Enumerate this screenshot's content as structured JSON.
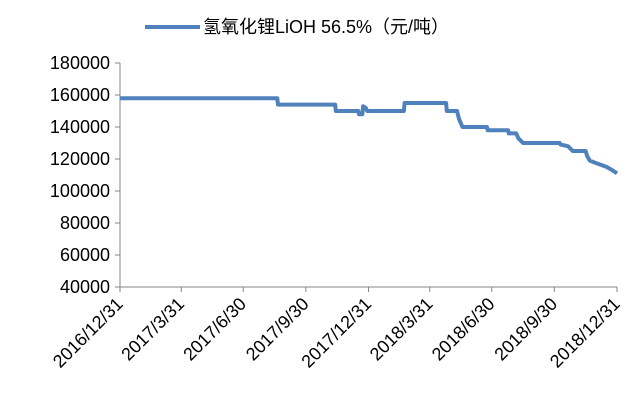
{
  "chart_data": {
    "type": "line",
    "series": [
      {
        "name": "氢氧化锂LiOH 56.5%（元/吨）",
        "color": "#4f81bd",
        "x": [
          "2016/12/31",
          "2017/8/19",
          "2017/8/20",
          "2017/11/12",
          "2017/11/13",
          "2017/12/16",
          "2017/12/17",
          "2017/12/22",
          "2017/12/23",
          "2017/12/27",
          "2017/12/29",
          "2018/2/21",
          "2018/2/22",
          "2018/4/24",
          "2018/4/25",
          "2018/5/10",
          "2018/5/13",
          "2018/5/18",
          "2018/6/23",
          "2018/6/24",
          "2018/7/24",
          "2018/7/25",
          "2018/8/5",
          "2018/8/8",
          "2018/8/15",
          "2018/10/8",
          "2018/10/9",
          "2018/10/20",
          "2018/10/27",
          "2018/11/15",
          "2018/11/17",
          "2018/11/21",
          "2018/12/3",
          "2018/12/16",
          "2018/12/24",
          "2018/12/31"
        ],
        "values": [
          158000,
          158000,
          154000,
          154000,
          150000,
          150000,
          148000,
          148000,
          153000,
          152000,
          150000,
          150000,
          155000,
          155000,
          150000,
          150000,
          145000,
          140000,
          140000,
          138000,
          138000,
          136000,
          136000,
          133000,
          130000,
          130000,
          129000,
          128000,
          125000,
          125000,
          122000,
          119000,
          117000,
          115000,
          113000,
          111000
        ]
      }
    ],
    "xlim": [
      "2016/12/31",
      "2018/12/31"
    ],
    "xticks": [
      "2016/12/31",
      "2017/3/31",
      "2017/6/30",
      "2017/9/30",
      "2017/12/31",
      "2018/3/31",
      "2018/6/30",
      "2018/9/30",
      "2018/12/31"
    ],
    "ylim": [
      40000,
      180000
    ],
    "yticks": [
      40000,
      60000,
      80000,
      100000,
      120000,
      140000,
      160000,
      180000
    ],
    "grid": false
  }
}
